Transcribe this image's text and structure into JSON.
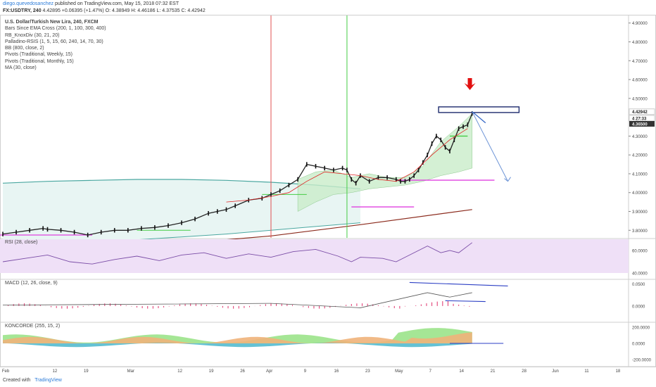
{
  "header": {
    "author": "diego.quevedosanchez",
    "published_text": "published on TradingView.com, May 15, 2018 07:32 EST",
    "symbol": "FX:USDTRY, 240",
    "quote_text": "4.42895 +0.06395 (+1.47%) O: 4.38949 H: 4.46186 L: 4.37535 C: 4.42942"
  },
  "main_pane": {
    "title": "U.S. Dollar/Turkish New Lira, 240, FXCM",
    "indicators": [
      "Bars Since EMA Cross (200, 1, 100, 300, 400)",
      "RB_KnoxDiv (30, 21, 20)",
      "Palladino-RSIS (1, 5, 15, 60, 240, 14, 70, 30)",
      "BB (800, close, 2)",
      "Pivots (Traditional, Weekly, 15)",
      "Pivots (Traditional, Monthly, 15)",
      "MA (30, close)"
    ]
  },
  "panes": {
    "rsi_label": "RSI (28, close)",
    "macd_label": "MACD (12, 26, close, 9)",
    "konkorde_label": "KONCORDE (255, 15, 2)"
  },
  "footer": {
    "created_with": "Created with",
    "brand": "TradingView"
  },
  "chart_data": {
    "type": "line",
    "price_axis": {
      "ticks": [
        {
          "v": 4.9,
          "label": "4.90000"
        },
        {
          "v": 4.8,
          "label": "4.80000"
        },
        {
          "v": 4.7,
          "label": "4.70000"
        },
        {
          "v": 4.6,
          "label": "4.60000"
        },
        {
          "v": 4.5,
          "label": "4.50000"
        },
        {
          "v": 4.3,
          "label": "4.30000"
        },
        {
          "v": 4.2,
          "label": "4.20000"
        },
        {
          "v": 4.1,
          "label": "4.10000"
        },
        {
          "v": 4.0,
          "label": "4.00000"
        },
        {
          "v": 3.9,
          "label": "3.90000"
        },
        {
          "v": 3.8,
          "label": "3.80000"
        }
      ],
      "ylim": [
        3.76,
        4.94
      ],
      "price_tags": [
        {
          "v": 4.42942,
          "label": "4.42942",
          "style": "light"
        },
        {
          "v": 4.395,
          "label": "4  27:33",
          "style": "light"
        },
        {
          "v": 4.365,
          "label": "4.36500",
          "style": "dark"
        }
      ]
    },
    "x_axis": {
      "labels": [
        {
          "x": 0,
          "label": "Feb"
        },
        {
          "x": 11,
          "label": "12"
        },
        {
          "x": 18,
          "label": "19"
        },
        {
          "x": 28,
          "label": "Mar"
        },
        {
          "x": 39,
          "label": "12"
        },
        {
          "x": 46,
          "label": "19"
        },
        {
          "x": 53,
          "label": "26"
        },
        {
          "x": 59,
          "label": "Apr"
        },
        {
          "x": 67,
          "label": "9"
        },
        {
          "x": 74,
          "label": "16"
        },
        {
          "x": 81,
          "label": "23"
        },
        {
          "x": 88,
          "label": "May"
        },
        {
          "x": 95,
          "label": "7"
        },
        {
          "x": 102,
          "label": "14"
        },
        {
          "x": 109,
          "label": "21"
        },
        {
          "x": 116,
          "label": "28"
        },
        {
          "x": 123,
          "label": "Jun"
        },
        {
          "x": 130,
          "label": "11"
        },
        {
          "x": 137,
          "label": "18"
        }
      ]
    },
    "series": [
      {
        "color": "#222222",
        "x": [
          0,
          3,
          6,
          9,
          10,
          13,
          16,
          19,
          22,
          25,
          28,
          31,
          34,
          37,
          40,
          43,
          46,
          48,
          50,
          52,
          55,
          58,
          60,
          62,
          64,
          66,
          68,
          70,
          72,
          74,
          76,
          77,
          78,
          79,
          80,
          82,
          84,
          86,
          88,
          89,
          90,
          91,
          92,
          93,
          94,
          95,
          96,
          97,
          98,
          99,
          100,
          101,
          102,
          103,
          104,
          105
        ],
        "values": [
          3.78,
          3.79,
          3.8,
          3.81,
          3.805,
          3.8,
          3.79,
          3.775,
          3.79,
          3.8,
          3.8,
          3.81,
          3.815,
          3.825,
          3.84,
          3.86,
          3.89,
          3.9,
          3.91,
          3.93,
          3.96,
          3.97,
          3.99,
          4.01,
          4.04,
          4.07,
          4.15,
          4.14,
          4.13,
          4.12,
          4.13,
          4.12,
          4.07,
          4.05,
          4.09,
          4.06,
          4.08,
          4.08,
          4.07,
          4.06,
          4.06,
          4.07,
          4.09,
          4.12,
          4.16,
          4.2,
          4.26,
          4.3,
          4.28,
          4.24,
          4.22,
          4.28,
          4.34,
          4.35,
          4.36,
          4.42
        ]
      },
      {
        "name": "MA",
        "color": "#e02020",
        "x": [
          50,
          55,
          60,
          64,
          68,
          72,
          76,
          80,
          84,
          88,
          92,
          96,
          100,
          104
        ],
        "values": [
          3.95,
          3.96,
          3.98,
          4.0,
          4.06,
          4.11,
          4.1,
          4.09,
          4.07,
          4.06,
          4.11,
          4.2,
          4.28,
          4.34
        ]
      }
    ],
    "bb_channel": {
      "x": [
        0,
        10,
        20,
        30,
        40,
        50,
        60,
        70,
        80
      ],
      "upper": [
        4.05,
        4.06,
        4.065,
        4.07,
        4.07,
        4.065,
        4.055,
        4.04,
        4.02
      ],
      "lower": [
        3.72,
        3.73,
        3.74,
        3.75,
        3.765,
        3.78,
        3.8,
        3.82,
        3.84
      ]
    },
    "ema200": {
      "x": [
        0,
        20,
        40,
        60,
        80,
        105
      ],
      "values": [
        3.68,
        3.7,
        3.73,
        3.77,
        3.83,
        3.91
      ]
    },
    "annotations": {
      "red_vline_x": 60,
      "green_vline_x": 77,
      "pivot_level": 4.066,
      "support_level": 3.924,
      "resistance_box": [
        4.425,
        4.455
      ],
      "arrow_target": 4.06
    },
    "rsi": {
      "ticks": [
        {
          "v": 60,
          "label": "60.0000"
        },
        {
          "v": 40,
          "label": "40.0000"
        }
      ],
      "ylim": [
        35,
        70
      ],
      "x": [
        0,
        5,
        10,
        15,
        20,
        25,
        30,
        35,
        40,
        45,
        50,
        55,
        60,
        65,
        70,
        75,
        78,
        80,
        85,
        88,
        90,
        95,
        98,
        100,
        102,
        105
      ],
      "values": [
        50,
        53,
        56,
        50,
        48,
        52,
        55,
        51,
        56,
        58,
        53,
        57,
        54,
        59,
        61,
        55,
        50,
        54,
        53,
        50,
        54,
        64,
        58,
        60,
        58,
        67
      ]
    },
    "macd": {
      "ticks": [
        {
          "v": 0.05,
          "label": "0.0500"
        },
        {
          "v": 0,
          "label": "0.0000"
        }
      ],
      "ylim": [
        -0.035,
        0.06
      ]
    },
    "konkorde": {
      "ticks": [
        {
          "v": 200,
          "label": "200.0000"
        },
        {
          "v": 0,
          "label": "0.0000"
        },
        {
          "v": -200,
          "label": "-200.0000"
        }
      ],
      "ylim": [
        -260,
        260
      ]
    }
  }
}
